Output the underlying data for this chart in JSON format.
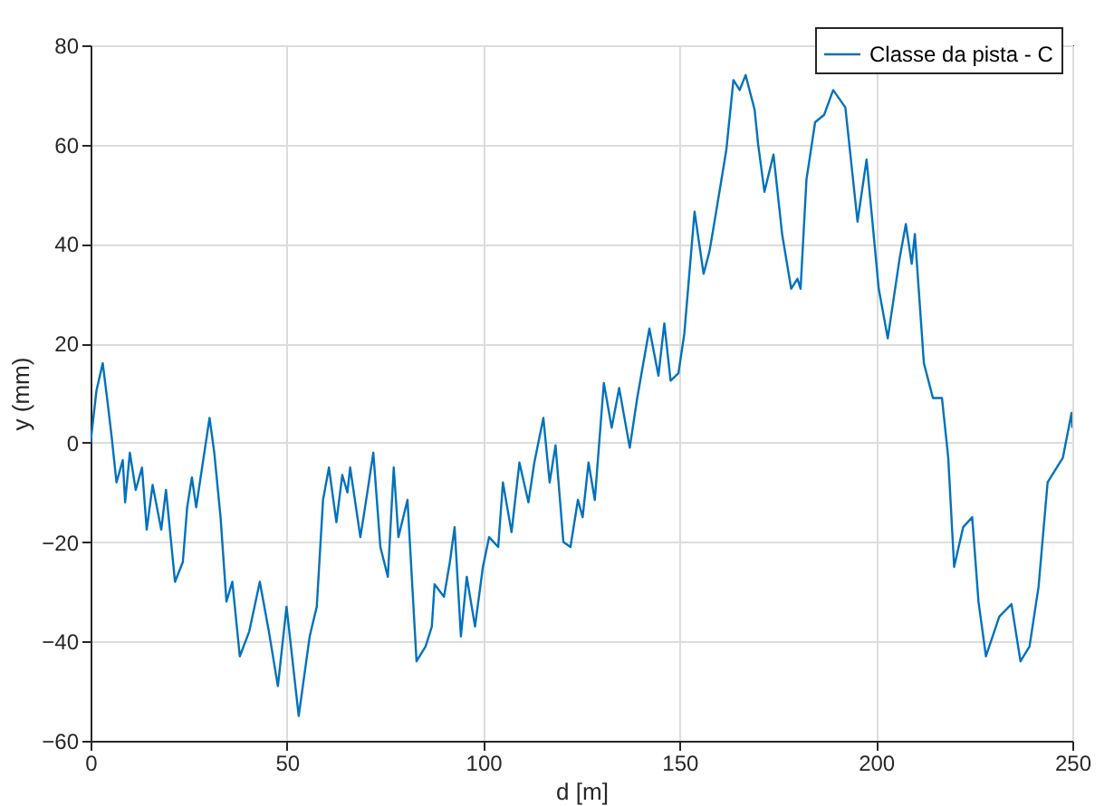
{
  "chart_data": {
    "type": "line",
    "xlabel": "d [m]",
    "ylabel": "y (mm)",
    "xlim": [
      0,
      250
    ],
    "xticks": [
      0,
      50,
      100,
      150,
      200,
      250
    ],
    "ylim": [
      -60,
      80
    ],
    "yticks": [
      -60,
      -40,
      -20,
      0,
      20,
      40,
      60,
      80
    ],
    "grid": true,
    "legend": "top right",
    "marker": "none",
    "line_style": "solid",
    "x": [
      0,
      1.5,
      3.1,
      4.2,
      5.4,
      6.6,
      8.2,
      8.8,
      10,
      11.5,
      13.1,
      14.3,
      15.8,
      18.0,
      19.2,
      21.5,
      23.5,
      24.6,
      25.8,
      26.9,
      28.4,
      30.3,
      31.5,
      33.1,
      34.6,
      36.1,
      38.0,
      40.4,
      43.1,
      45.4,
      47.7,
      49.9,
      53.0,
      55.8,
      57.6,
      59.2,
      60.7,
      62.6,
      64.1,
      65.4,
      66.1,
      68.7,
      69.9,
      72.0,
      73.8,
      75.7,
      77.2,
      78.4,
      80.7,
      83,
      85.3,
      86.9,
      87.6,
      90,
      91.5,
      92.7,
      94.3,
      95.8,
      97.9,
      99.9,
      101.5,
      103.8,
      105.0,
      107.2,
      109.2,
      111.5,
      113.0,
      115.3,
      116.9,
      118.4,
      120.4,
      122.2,
      124.1,
      125.3,
      126.8,
      128.4,
      130.7,
      132.7,
      134.6,
      137.3,
      139.2,
      142.3,
      144.6,
      146.1,
      147.7,
      149.7,
      151.2,
      153.8,
      156.1,
      157.6,
      159.2,
      161.9,
      163.7,
      165.3,
      166.8,
      169.1,
      170,
      171.6,
      173.9,
      176.1,
      178.4,
      180,
      180.8,
      182.3,
      184.5,
      186.8,
      189.1,
      192.2,
      195.3,
      197.6,
      200.7,
      203,
      206,
      207.6,
      209.1,
      209.9,
      212.2,
      214.5,
      216.8,
      218.4,
      219.9,
      222.2,
      224.5,
      226.1,
      228,
      231.4,
      234.5,
      236.8,
      239.1,
      241.4,
      243.7,
      247.6,
      249.8,
      250
    ],
    "series": [
      {
        "name": "Classe da pista - C",
        "color": "#0072bd",
        "values": [
          0,
          10.5,
          16,
          9,
          1,
          -8,
          -3.5,
          -12,
          -2,
          -9.5,
          -5,
          -17.5,
          -8.5,
          -17.5,
          -9.5,
          -28,
          -24,
          -13,
          -7,
          -13,
          -5,
          5,
          -2,
          -15,
          -32,
          -28,
          -43,
          -38,
          -28,
          -38,
          -49,
          -33,
          -55,
          -39,
          -33,
          -11.5,
          -5,
          -16,
          -6.5,
          -10,
          -5,
          -19,
          -13,
          -2,
          -21,
          -27,
          -5,
          -19,
          -11.5,
          -44,
          -41,
          -37,
          -28.5,
          -31,
          -24,
          -17,
          -39,
          -27,
          -37,
          -25,
          -19,
          -21,
          -8,
          -18,
          -4,
          -12,
          -4,
          5,
          -8,
          -0.5,
          -20,
          -21,
          -11.5,
          -15,
          -4,
          -11.5,
          12,
          3,
          11,
          -1,
          9,
          23,
          13.5,
          24,
          12.5,
          14,
          22,
          46.5,
          34,
          38.5,
          46,
          59,
          73,
          71,
          74,
          67,
          60,
          50.5,
          58,
          42,
          31,
          33,
          31,
          53,
          64.5,
          66,
          71,
          67.5,
          44.5,
          57,
          31,
          21,
          37,
          44,
          36,
          42,
          16,
          9,
          9,
          -3,
          -25,
          -17,
          -15,
          -32,
          -43,
          -35,
          -32.5,
          -44,
          -41,
          -29,
          -8,
          -3,
          6,
          3
        ]
      }
    ]
  }
}
